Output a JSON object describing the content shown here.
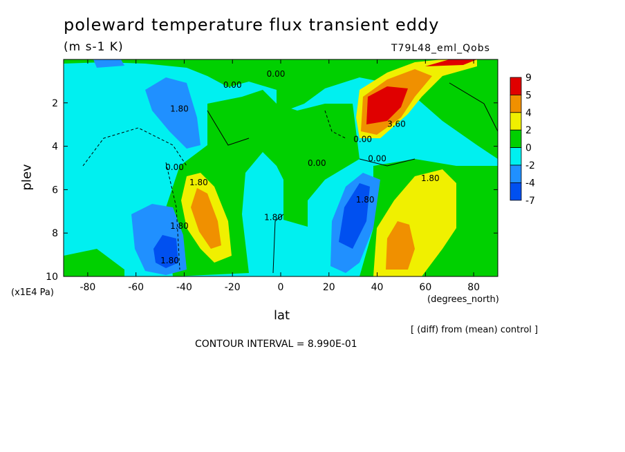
{
  "chart_data": {
    "type": "contour",
    "title": "poleward temperature flux transient eddy",
    "units": "(m s-1 K)",
    "run_label": "T79L48_eml_Qobs",
    "xlabel": "lat",
    "x_units": "(degrees_north)",
    "ylabel": "plev",
    "y_units": "(x1E4 Pa)",
    "diff_note": "[ (diff) from (mean) control ]",
    "contour_interval": "CONTOUR INTERVAL = 8.990E-01",
    "xlim": [
      -90,
      90
    ],
    "ylim": [
      10,
      0
    ],
    "x_ticks": [
      "-80",
      "-60",
      "-40",
      "-20",
      "0",
      "20",
      "40",
      "60",
      "80"
    ],
    "y_ticks": [
      "2",
      "4",
      "6",
      "8",
      "10"
    ],
    "colorbar": {
      "labels": [
        "9",
        "5",
        "4",
        "2",
        "0",
        "-2",
        "-4",
        "-7"
      ],
      "colors": [
        "#e00000",
        "#f09000",
        "#f0f000",
        "#00d000",
        "#00f0f0",
        "#2090ff",
        "#0050f0"
      ]
    },
    "contour_labels": [
      "0.00",
      "0.00",
      "1.80",
      "0.00",
      "1.80",
      "0.00",
      "1.80",
      "1.80",
      "0.00",
      "1.80",
      "1.80",
      "3.60",
      "0.00",
      "1.80"
    ],
    "features": [
      {
        "lat": 45,
        "plev": 2.5,
        "sign": "positive",
        "level": "5 to 9"
      },
      {
        "lat": -33,
        "plev": 7.5,
        "sign": "positive",
        "level": "4"
      },
      {
        "lat": 48,
        "plev": 9,
        "sign": "positive",
        "level": "4"
      },
      {
        "lat": -47,
        "plev": 9,
        "sign": "negative",
        "level": "-4 to -7"
      },
      {
        "lat": 32,
        "plev": 7.5,
        "sign": "negative",
        "level": "-4 to -7"
      },
      {
        "lat": -50,
        "plev": 2,
        "sign": "negative",
        "level": "-4"
      },
      {
        "lat": 68,
        "plev": 0.2,
        "sign": "positive",
        "level": "5 to 9"
      }
    ]
  }
}
